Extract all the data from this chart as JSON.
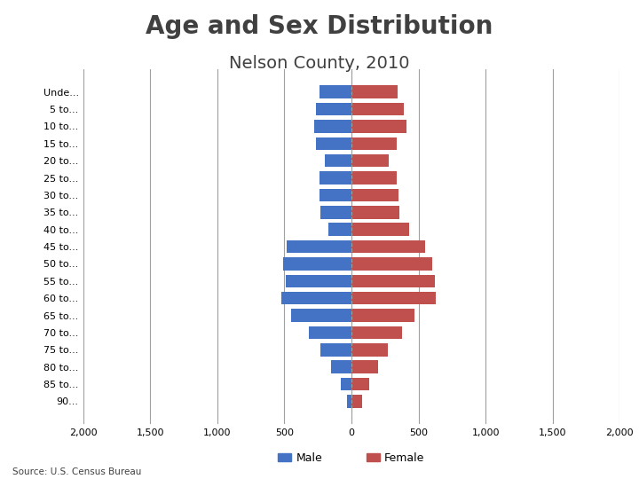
{
  "title": "Age and Sex Distribution",
  "subtitle": "Nelson County, 2010",
  "source": "Source: U.S. Census Bureau",
  "age_groups": [
    "Unde...",
    "5 to...",
    "10 to...",
    "15 to...",
    "20 to...",
    "25 to...",
    "30 to...",
    "35 to...",
    "40 to...",
    "45 to...",
    "50 to...",
    "55 to...",
    "60 to...",
    "65 to...",
    "70 to...",
    "75 to...",
    "80 to...",
    "85 to...",
    "90..."
  ],
  "male": [
    240,
    265,
    280,
    265,
    200,
    240,
    240,
    230,
    170,
    480,
    510,
    490,
    520,
    450,
    320,
    230,
    155,
    80,
    30
  ],
  "female": [
    345,
    390,
    410,
    340,
    280,
    340,
    350,
    360,
    430,
    550,
    600,
    620,
    630,
    470,
    380,
    270,
    200,
    130,
    80
  ],
  "male_color": "#4472C4",
  "female_color": "#C0504D",
  "xlim": 2000,
  "xtick_values": [
    -2000,
    -1500,
    -1000,
    -500,
    0,
    500,
    1000,
    1500,
    2000
  ],
  "xtick_labels": [
    "2,000",
    "1,500",
    "1,000",
    "500",
    "0",
    "500",
    "1,000",
    "1,500",
    "2,000"
  ],
  "title_fontsize": 20,
  "subtitle_fontsize": 14,
  "tick_fontsize": 8,
  "label_fontsize": 9,
  "bar_height": 0.75,
  "grid_color": "#A0A0A0",
  "background_color": "#FFFFFF",
  "title_color": "#404040",
  "subtitle_color": "#404040"
}
